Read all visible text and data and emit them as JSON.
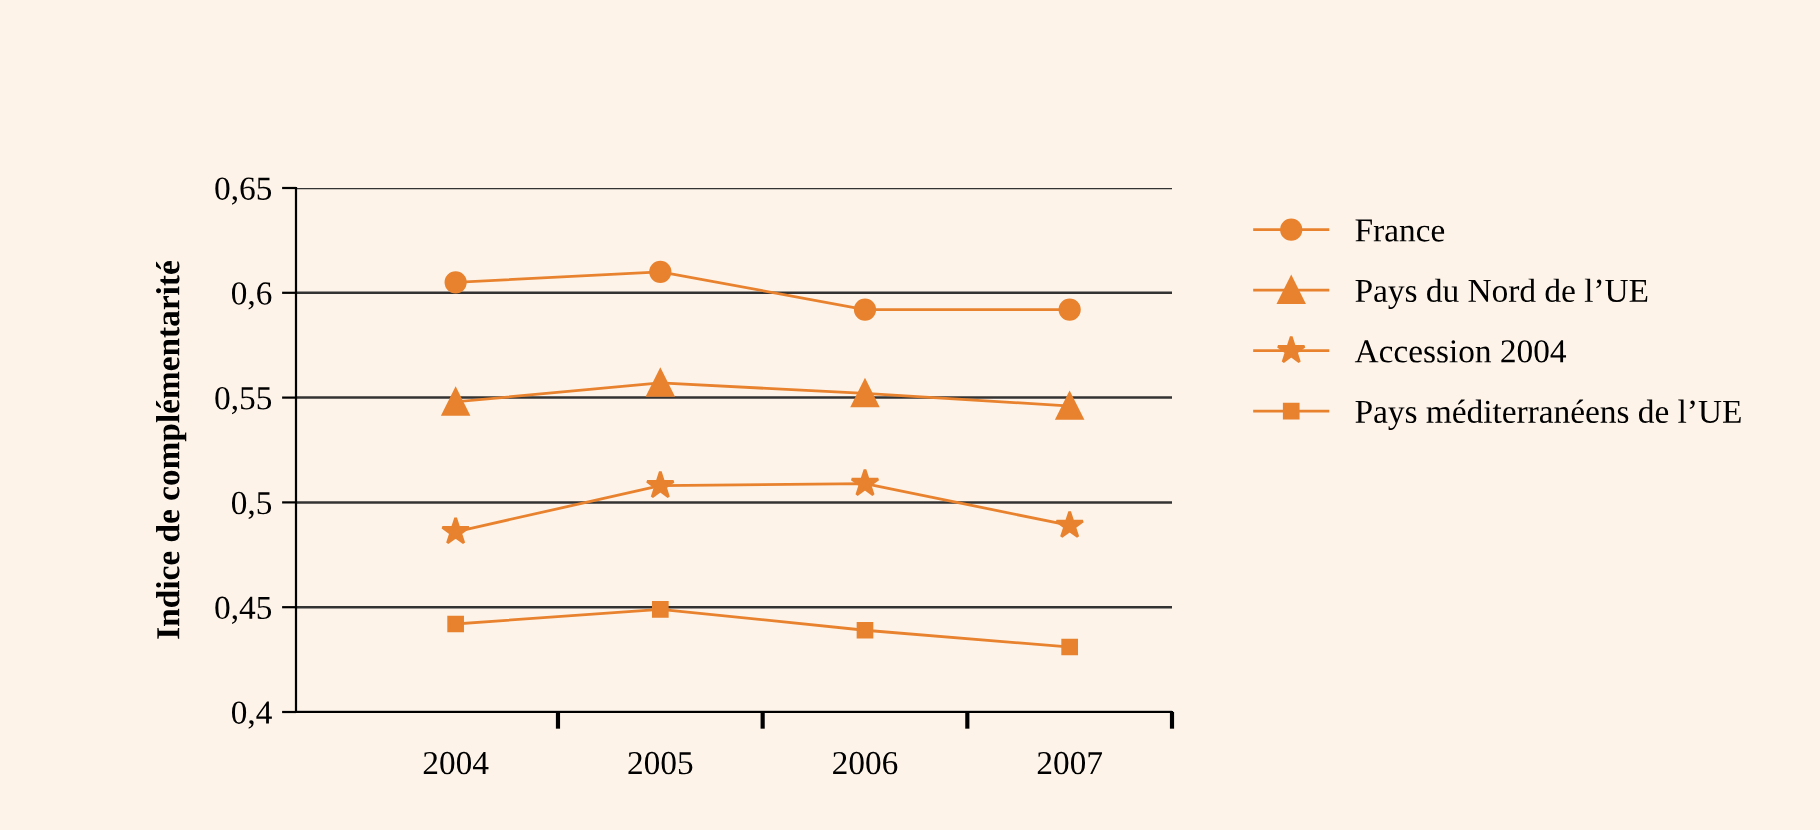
{
  "chart_data": {
    "type": "line",
    "ylabel": "Indice de complémentarité",
    "categories": [
      "2004",
      "2005",
      "2006",
      "2007"
    ],
    "series": [
      {
        "name": "France",
        "color": "#e8822f",
        "marker": "circle",
        "values": [
          0.605,
          0.61,
          0.592,
          0.592
        ]
      },
      {
        "name": "Pays du Nord de l’UE",
        "color": "#e8822f",
        "marker": "triangle",
        "values": [
          0.548,
          0.557,
          0.552,
          0.546
        ]
      },
      {
        "name": "Accession 2004",
        "color": "#e8822f",
        "marker": "star",
        "values": [
          0.486,
          0.508,
          0.509,
          0.489
        ]
      },
      {
        "name": "Pays méditerranéens de l’UE",
        "color": "#e8822f",
        "marker": "square",
        "values": [
          0.442,
          0.449,
          0.439,
          0.431
        ]
      }
    ],
    "ylim": [
      0.4,
      0.65
    ],
    "yticks": [
      {
        "value": 0.4,
        "label": "0,4"
      },
      {
        "value": 0.45,
        "label": "0,45"
      },
      {
        "value": 0.5,
        "label": "0,5"
      },
      {
        "value": 0.55,
        "label": "0,55"
      },
      {
        "value": 0.6,
        "label": "0,6"
      },
      {
        "value": 0.65,
        "label": "0,65"
      }
    ],
    "grid": "y",
    "legend": "right",
    "line_style": "solid"
  }
}
